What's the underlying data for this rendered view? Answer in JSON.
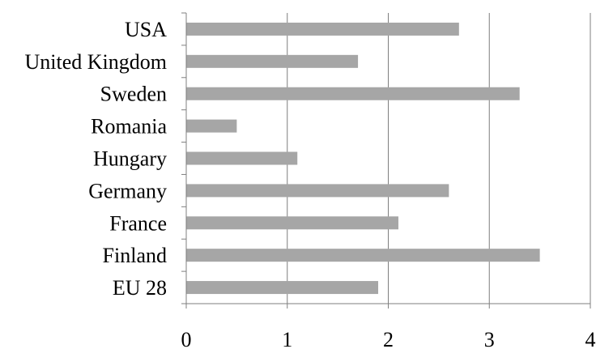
{
  "chart_data": {
    "type": "bar",
    "orientation": "horizontal",
    "categories": [
      "USA",
      "United Kingdom",
      "Sweden",
      "Romania",
      "Hungary",
      "Germany",
      "France",
      "Finland",
      "EU 28"
    ],
    "values": [
      2.7,
      1.7,
      3.3,
      0.5,
      1.1,
      2.6,
      2.1,
      3.5,
      1.9
    ],
    "title": "",
    "xlabel": "",
    "ylabel": "",
    "xlim": [
      0,
      4
    ],
    "xticks": [
      "0",
      "1",
      "2",
      "3",
      "4"
    ],
    "grid": "vertical",
    "legend": "none",
    "bar_color": "#a6a6a6",
    "grid_color": "#7f7f7f",
    "axis_color": "#7f7f7f"
  }
}
